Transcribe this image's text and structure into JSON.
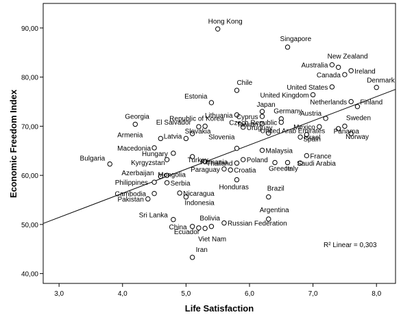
{
  "chart_data": {
    "type": "scatter",
    "xlabel": "Life Satisfaction",
    "ylabel": "Economic Freedom Index",
    "xlim": [
      2.75,
      8.3
    ],
    "ylim": [
      38,
      95
    ],
    "xticks": [
      3.0,
      4.0,
      5.0,
      6.0,
      7.0,
      8.0
    ],
    "xtick_labels": [
      "3,0",
      "4,0",
      "5,0",
      "6,0",
      "7,0",
      "8,0"
    ],
    "yticks": [
      40,
      50,
      60,
      70,
      80,
      90
    ],
    "ytick_labels": [
      "40,00",
      "50,00",
      "60,00",
      "70,00",
      "80,00",
      "90,00"
    ],
    "grid": false,
    "fit_line": {
      "x1": 2.75,
      "y1": 50.2,
      "x2": 8.3,
      "y2": 77.5,
      "label": "R² Linear = 0,303"
    },
    "points": [
      {
        "label": "Hong Kong",
        "x": 5.5,
        "y": 89.8
      },
      {
        "label": "Singapore",
        "x": 6.6,
        "y": 86.1
      },
      {
        "label": "New Zealand",
        "x": 7.4,
        "y": 82.0
      },
      {
        "label": "Australia",
        "x": 7.3,
        "y": 82.5
      },
      {
        "label": "Ireland",
        "x": 7.6,
        "y": 81.3
      },
      {
        "label": "Canada",
        "x": 7.5,
        "y": 80.5
      },
      {
        "label": "Denmark",
        "x": 8.0,
        "y": 77.9
      },
      {
        "label": "United States",
        "x": 7.3,
        "y": 78.0
      },
      {
        "label": "Chile",
        "x": 5.8,
        "y": 77.3
      },
      {
        "label": "United Kingdom",
        "x": 7.0,
        "y": 76.4
      },
      {
        "label": "Estonia",
        "x": 5.4,
        "y": 74.8
      },
      {
        "label": "Netherlands",
        "x": 7.6,
        "y": 75.0
      },
      {
        "label": "Finland",
        "x": 7.7,
        "y": 74.0
      },
      {
        "label": "Japan",
        "x": 6.2,
        "y": 73.0
      },
      {
        "label": "Lithuania",
        "x": 5.8,
        "y": 72.3
      },
      {
        "label": "Germany",
        "x": 6.5,
        "y": 71.5
      },
      {
        "label": "Austria",
        "x": 7.2,
        "y": 71.6
      },
      {
        "label": "Cyprus",
        "x": 6.2,
        "y": 72.0
      },
      {
        "label": "Czech Republic",
        "x": 6.5,
        "y": 70.8
      },
      {
        "label": "Georgia",
        "x": 4.2,
        "y": 70.4
      },
      {
        "label": "Republic of Korea",
        "x": 5.3,
        "y": 70.0
      },
      {
        "label": "Taiwan",
        "x": 6.2,
        "y": 70.5
      },
      {
        "label": "Sweden",
        "x": 7.5,
        "y": 70.0
      },
      {
        "label": "El Salvador",
        "x": 5.2,
        "y": 69.9
      },
      {
        "label": "Uruguay",
        "x": 5.9,
        "y": 69.8
      },
      {
        "label": "Mexico",
        "x": 7.1,
        "y": 69.9
      },
      {
        "label": "Panama",
        "x": 7.4,
        "y": 69.5
      },
      {
        "label": "Slovakia",
        "x": 5.1,
        "y": 68.5
      },
      {
        "label": "United Arab Emirates",
        "x": 6.3,
        "y": 68.6
      },
      {
        "label": "Spain",
        "x": 6.9,
        "y": 68.3
      },
      {
        "label": "Norway",
        "x": 7.6,
        "y": 68.5
      },
      {
        "label": "Armenia",
        "x": 4.6,
        "y": 67.5
      },
      {
        "label": "Latvia",
        "x": 5.0,
        "y": 67.5
      },
      {
        "label": "Israel",
        "x": 6.8,
        "y": 67.8
      },
      {
        "label": "Slovenia",
        "x": 5.8,
        "y": 65.5
      },
      {
        "label": "Macedonia",
        "x": 4.5,
        "y": 65.6
      },
      {
        "label": "Hungary",
        "x": 4.8,
        "y": 64.5
      },
      {
        "label": "Malaysia",
        "x": 6.2,
        "y": 65.1
      },
      {
        "label": "France",
        "x": 6.9,
        "y": 64.0
      },
      {
        "label": "Kyrgyzstan",
        "x": 4.7,
        "y": 63.2
      },
      {
        "label": "Turkey",
        "x": 5.1,
        "y": 63.8
      },
      {
        "label": "Bulgaria",
        "x": 3.8,
        "y": 62.3
      },
      {
        "label": "Romania",
        "x": 5.3,
        "y": 62.8
      },
      {
        "label": "Thailand",
        "x": 5.8,
        "y": 62.5
      },
      {
        "label": "Poland",
        "x": 5.9,
        "y": 63.2
      },
      {
        "label": "Saudi Arabia",
        "x": 6.8,
        "y": 62.5
      },
      {
        "label": "Greece",
        "x": 6.4,
        "y": 62.6
      },
      {
        "label": "Italy",
        "x": 6.6,
        "y": 62.6
      },
      {
        "label": "Paraguay",
        "x": 5.6,
        "y": 61.3
      },
      {
        "label": "Croatia",
        "x": 5.7,
        "y": 61.1
      },
      {
        "label": "Azerbaijan",
        "x": 4.7,
        "y": 60.0
      },
      {
        "label": "Mongolia",
        "x": 4.6,
        "y": 59.8
      },
      {
        "label": "Philippines",
        "x": 4.5,
        "y": 58.6
      },
      {
        "label": "Serbia",
        "x": 4.7,
        "y": 58.5
      },
      {
        "label": "Honduras",
        "x": 5.8,
        "y": 59.1
      },
      {
        "label": "Cambodia",
        "x": 4.5,
        "y": 56.3
      },
      {
        "label": "Nicaragua",
        "x": 4.9,
        "y": 56.4
      },
      {
        "label": "Pakistan",
        "x": 4.4,
        "y": 55.2
      },
      {
        "label": "Indonesia",
        "x": 5.0,
        "y": 55.6
      },
      {
        "label": "Brazil",
        "x": 6.3,
        "y": 55.6
      },
      {
        "label": "Sri Lanka",
        "x": 4.8,
        "y": 51.0
      },
      {
        "label": "Argentina",
        "x": 6.3,
        "y": 51.1
      },
      {
        "label": "China",
        "x": 5.1,
        "y": 49.6
      },
      {
        "label": "Bolivia",
        "x": 5.4,
        "y": 49.6
      },
      {
        "label": "Russian Federation",
        "x": 5.6,
        "y": 50.3
      },
      {
        "label": "Ecuador",
        "x": 5.2,
        "y": 49.3
      },
      {
        "label": "Viet Nam",
        "x": 5.3,
        "y": 49.2
      },
      {
        "label": "Iran",
        "x": 5.1,
        "y": 43.3
      }
    ]
  }
}
